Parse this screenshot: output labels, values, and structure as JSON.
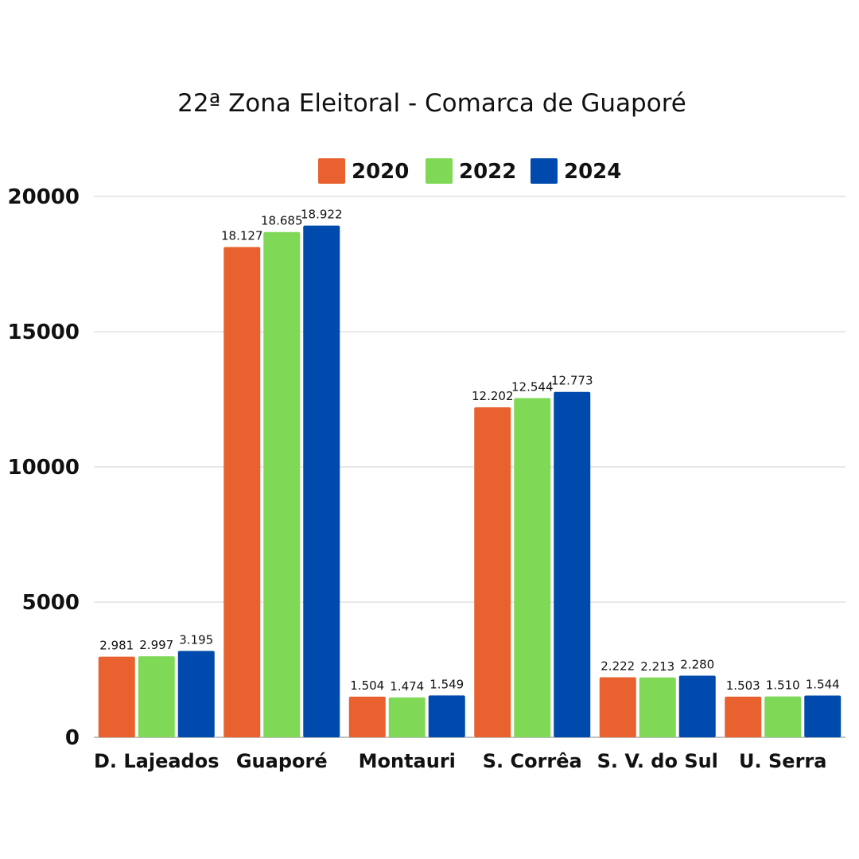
{
  "chart_data": {
    "type": "bar",
    "title": "22ª Zona Eleitoral - Comarca de Guaporé",
    "xlabel": "",
    "ylabel": "",
    "ylim": [
      0,
      20000
    ],
    "yticks": [
      "0",
      "5000",
      "10000",
      "15000",
      "20000"
    ],
    "ytick_values": [
      0,
      5000,
      10000,
      15000,
      20000
    ],
    "grid": true,
    "legend_position": "top-center",
    "categories": [
      "D. Lajeados",
      "Guaporé",
      "Montauri",
      "S. Corrêa",
      "S. V. do Sul",
      "U. Serra"
    ],
    "series": [
      {
        "name": "2020",
        "color": "#E8612F",
        "values": [
          2981,
          18127,
          1504,
          12202,
          2222,
          1503
        ],
        "labels": [
          "2.981",
          "18.127",
          "1.504",
          "12.202",
          "2.222",
          "1.503"
        ]
      },
      {
        "name": "2022",
        "color": "#7FD957",
        "values": [
          2997,
          18685,
          1474,
          12544,
          2213,
          1510
        ],
        "labels": [
          "2.997",
          "18.685",
          "1.474",
          "12.544",
          "2.213",
          "1.510"
        ]
      },
      {
        "name": "2024",
        "color": "#004AAD",
        "values": [
          3195,
          18922,
          1549,
          12773,
          2280,
          1544
        ],
        "labels": [
          "3.195",
          "18.922",
          "1.549",
          "12.773",
          "2.280",
          "1.544"
        ]
      }
    ]
  }
}
